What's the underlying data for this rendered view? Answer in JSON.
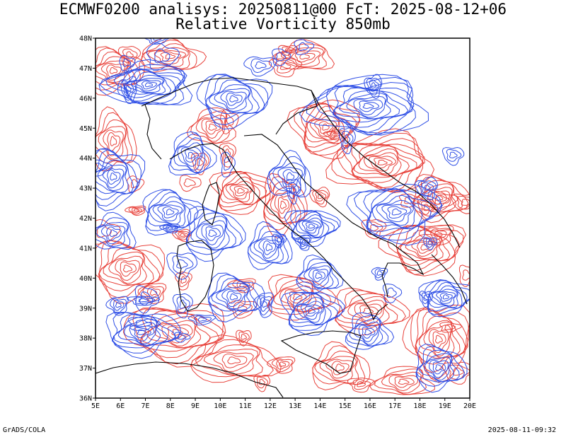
{
  "title": {
    "line1": "ECMWF0200 analisys: 20250811@00 FcT: 2025-08-12+06",
    "line2": "Relative Vorticity 850mb"
  },
  "map": {
    "lon_range": [
      5,
      20
    ],
    "lat_range": [
      36,
      48
    ],
    "lon_ticks": [
      "5E",
      "6E",
      "7E",
      "8E",
      "9E",
      "10E",
      "11E",
      "12E",
      "13E",
      "14E",
      "15E",
      "16E",
      "17E",
      "18E",
      "19E",
      "20E"
    ],
    "lat_ticks": [
      "36N",
      "37N",
      "38N",
      "39N",
      "40N",
      "41N",
      "42N",
      "43N",
      "44N",
      "45N",
      "46N",
      "47N",
      "48N"
    ],
    "colors": {
      "positive": "#e8433c",
      "negative": "#2f4fe6",
      "coast": "#000000"
    }
  },
  "footer": {
    "credit": "GrADS/COLA",
    "timestamp": "2025-08-11-09:32"
  }
}
